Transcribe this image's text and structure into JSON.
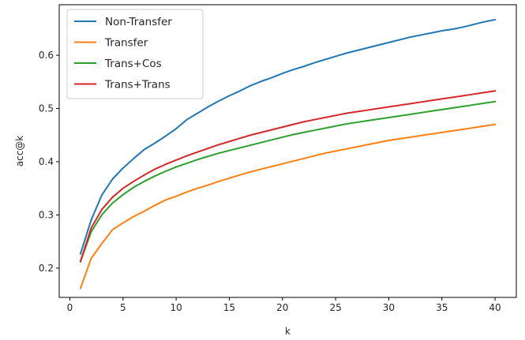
{
  "chart_data": {
    "type": "line",
    "title": "",
    "xlabel": "k",
    "ylabel": "acc@k",
    "xlim": [
      -1,
      42
    ],
    "ylim": [
      0.145,
      0.695
    ],
    "xticks": [
      0,
      5,
      10,
      15,
      20,
      25,
      30,
      35,
      40
    ],
    "yticks": [
      0.2,
      0.3,
      0.4,
      0.5,
      0.6
    ],
    "grid": false,
    "legend_position": "top-left",
    "x": [
      1,
      2,
      3,
      4,
      5,
      6,
      7,
      8,
      9,
      10,
      11,
      12,
      13,
      14,
      15,
      16,
      17,
      18,
      19,
      20,
      21,
      22,
      23,
      24,
      25,
      26,
      27,
      28,
      29,
      30,
      31,
      32,
      33,
      34,
      35,
      36,
      37,
      38,
      39,
      40
    ],
    "series": [
      {
        "name": "Non-Transfer",
        "color": "#1f77b4",
        "values": [
          0.227,
          0.29,
          0.337,
          0.367,
          0.388,
          0.406,
          0.423,
          0.435,
          0.448,
          0.462,
          0.479,
          0.491,
          0.503,
          0.514,
          0.524,
          0.533,
          0.543,
          0.551,
          0.558,
          0.566,
          0.573,
          0.579,
          0.586,
          0.592,
          0.598,
          0.604,
          0.609,
          0.614,
          0.619,
          0.624,
          0.629,
          0.634,
          0.638,
          0.642,
          0.646,
          0.649,
          0.653,
          0.658,
          0.663,
          0.667
        ]
      },
      {
        "name": "Transfer",
        "color": "#ff7f0e",
        "values": [
          0.162,
          0.218,
          0.246,
          0.272,
          0.285,
          0.297,
          0.307,
          0.318,
          0.328,
          0.335,
          0.343,
          0.35,
          0.356,
          0.363,
          0.369,
          0.375,
          0.381,
          0.386,
          0.391,
          0.396,
          0.401,
          0.406,
          0.411,
          0.416,
          0.42,
          0.424,
          0.428,
          0.432,
          0.436,
          0.44,
          0.443,
          0.446,
          0.449,
          0.452,
          0.455,
          0.458,
          0.461,
          0.464,
          0.467,
          0.47
        ]
      },
      {
        "name": "Trans+Cos",
        "color": "#2ca02c",
        "values": [
          0.212,
          0.268,
          0.3,
          0.322,
          0.338,
          0.352,
          0.363,
          0.373,
          0.382,
          0.39,
          0.397,
          0.404,
          0.41,
          0.416,
          0.421,
          0.426,
          0.431,
          0.436,
          0.441,
          0.446,
          0.451,
          0.455,
          0.459,
          0.463,
          0.467,
          0.471,
          0.474,
          0.477,
          0.48,
          0.483,
          0.486,
          0.489,
          0.492,
          0.495,
          0.498,
          0.501,
          0.504,
          0.507,
          0.51,
          0.513
        ]
      },
      {
        "name": "Trans+Trans",
        "color": "#d62728",
        "values": [
          0.213,
          0.275,
          0.31,
          0.333,
          0.35,
          0.363,
          0.375,
          0.386,
          0.395,
          0.403,
          0.411,
          0.418,
          0.425,
          0.432,
          0.438,
          0.444,
          0.45,
          0.455,
          0.46,
          0.465,
          0.47,
          0.475,
          0.479,
          0.483,
          0.487,
          0.491,
          0.494,
          0.497,
          0.5,
          0.503,
          0.506,
          0.509,
          0.512,
          0.515,
          0.518,
          0.521,
          0.524,
          0.527,
          0.53,
          0.533
        ]
      }
    ]
  }
}
